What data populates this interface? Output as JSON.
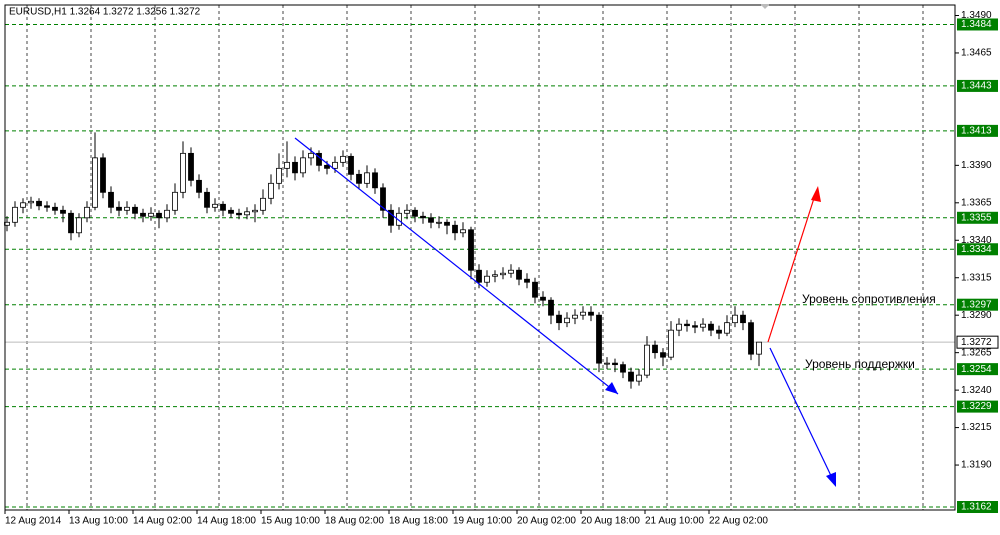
{
  "chart_data": {
    "type": "candlestick",
    "title": "EURUSD,H1  1.3264 1.3272 1.3256 1.3272",
    "categories": [
      "12 Aug 2014",
      null,
      null,
      null,
      null,
      null,
      null,
      null,
      "13 Aug 10:00",
      null,
      null,
      null,
      null,
      null,
      null,
      null,
      "14 Aug 02:00",
      null,
      null,
      null,
      null,
      null,
      null,
      null,
      "14 Aug 18:00",
      null,
      null,
      null,
      null,
      null,
      null,
      null,
      "15 Aug 10:00",
      null,
      null,
      null,
      null,
      null,
      null,
      null,
      "18 Aug 02:00",
      null,
      null,
      null,
      null,
      null,
      null,
      null,
      "18 Aug 18:00",
      null,
      null,
      null,
      null,
      null,
      null,
      null,
      "19 Aug 10:00",
      null,
      null,
      null,
      null,
      null,
      null,
      null,
      "20 Aug 02:00",
      null,
      null,
      null,
      null,
      null,
      null,
      null,
      "20 Aug 18:00",
      null,
      null,
      null,
      null,
      null,
      null,
      null,
      "21 Aug 10:00",
      null,
      null,
      null,
      null,
      null,
      null,
      null,
      "22 Aug 02:00",
      null,
      null,
      null,
      null,
      null,
      null
    ],
    "ohlc": [
      [
        1.335,
        1.3356,
        1.3346,
        1.3352
      ],
      [
        1.3352,
        1.3366,
        1.3349,
        1.3362
      ],
      [
        1.3362,
        1.3368,
        1.3358,
        1.3365
      ],
      [
        1.3365,
        1.3369,
        1.3361,
        1.3366
      ],
      [
        1.3366,
        1.3368,
        1.336,
        1.3363
      ],
      [
        1.3363,
        1.3366,
        1.3359,
        1.3362
      ],
      [
        1.3362,
        1.3365,
        1.3357,
        1.336
      ],
      [
        1.336,
        1.3363,
        1.3352,
        1.3358
      ],
      [
        1.3358,
        1.336,
        1.334,
        1.3345
      ],
      [
        1.3345,
        1.3358,
        1.3342,
        1.3355
      ],
      [
        1.3355,
        1.3366,
        1.3352,
        1.3362
      ],
      [
        1.3362,
        1.3412,
        1.336,
        1.3395
      ],
      [
        1.3395,
        1.3398,
        1.3368,
        1.3372
      ],
      [
        1.3372,
        1.3376,
        1.3358,
        1.3362
      ],
      [
        1.3362,
        1.3366,
        1.3356,
        1.336
      ],
      [
        1.336,
        1.3366,
        1.3357,
        1.3362
      ],
      [
        1.3362,
        1.3364,
        1.3354,
        1.3358
      ],
      [
        1.3358,
        1.3361,
        1.3352,
        1.3356
      ],
      [
        1.3356,
        1.3362,
        1.3353,
        1.3358
      ],
      [
        1.3358,
        1.336,
        1.3348,
        1.3355
      ],
      [
        1.3355,
        1.3364,
        1.3352,
        1.336
      ],
      [
        1.336,
        1.3378,
        1.3357,
        1.3372
      ],
      [
        1.3372,
        1.3406,
        1.3368,
        1.3398
      ],
      [
        1.3398,
        1.3402,
        1.3376,
        1.338
      ],
      [
        1.338,
        1.3384,
        1.3368,
        1.3372
      ],
      [
        1.3372,
        1.3375,
        1.3358,
        1.3362
      ],
      [
        1.3362,
        1.3368,
        1.3359,
        1.3364
      ],
      [
        1.3364,
        1.3366,
        1.3356,
        1.336
      ],
      [
        1.336,
        1.3362,
        1.3355,
        1.3358
      ],
      [
        1.3358,
        1.3361,
        1.3354,
        1.3357
      ],
      [
        1.3357,
        1.3362,
        1.3354,
        1.3359
      ],
      [
        1.3359,
        1.3364,
        1.3352,
        1.336
      ],
      [
        1.336,
        1.3374,
        1.3357,
        1.3368
      ],
      [
        1.3368,
        1.3384,
        1.3364,
        1.3378
      ],
      [
        1.3378,
        1.3398,
        1.3374,
        1.3388
      ],
      [
        1.3388,
        1.3406,
        1.3382,
        1.3392
      ],
      [
        1.3392,
        1.3396,
        1.338,
        1.3385
      ],
      [
        1.3385,
        1.34,
        1.3382,
        1.3395
      ],
      [
        1.3395,
        1.3402,
        1.339,
        1.3398
      ],
      [
        1.3398,
        1.34,
        1.3386,
        1.339
      ],
      [
        1.339,
        1.3393,
        1.3384,
        1.3388
      ],
      [
        1.3388,
        1.3396,
        1.3385,
        1.3392
      ],
      [
        1.3392,
        1.34,
        1.3389,
        1.3396
      ],
      [
        1.3396,
        1.3398,
        1.338,
        1.3384
      ],
      [
        1.3384,
        1.3387,
        1.3374,
        1.3378
      ],
      [
        1.3378,
        1.339,
        1.3375,
        1.3385
      ],
      [
        1.3385,
        1.3388,
        1.3371,
        1.3375
      ],
      [
        1.3375,
        1.3378,
        1.3355,
        1.336
      ],
      [
        1.336,
        1.3364,
        1.3345,
        1.335
      ],
      [
        1.335,
        1.3362,
        1.3347,
        1.3358
      ],
      [
        1.3358,
        1.3364,
        1.3354,
        1.336
      ],
      [
        1.336,
        1.3362,
        1.3352,
        1.3356
      ],
      [
        1.3356,
        1.3359,
        1.3351,
        1.3355
      ],
      [
        1.3355,
        1.3358,
        1.3348,
        1.3352
      ],
      [
        1.3352,
        1.3356,
        1.3348,
        1.3352
      ],
      [
        1.3352,
        1.3354,
        1.3344,
        1.335
      ],
      [
        1.335,
        1.3353,
        1.334,
        1.3345
      ],
      [
        1.3345,
        1.3352,
        1.3342,
        1.3347
      ],
      [
        1.3347,
        1.3349,
        1.3314,
        1.332
      ],
      [
        1.332,
        1.3324,
        1.3308,
        1.3312
      ],
      [
        1.3312,
        1.332,
        1.3309,
        1.3316
      ],
      [
        1.3316,
        1.332,
        1.3312,
        1.3317
      ],
      [
        1.3317,
        1.3322,
        1.3314,
        1.3318
      ],
      [
        1.3318,
        1.3324,
        1.3315,
        1.332
      ],
      [
        1.332,
        1.3322,
        1.331,
        1.3314
      ],
      [
        1.3314,
        1.3318,
        1.3308,
        1.3312
      ],
      [
        1.3312,
        1.3315,
        1.3298,
        1.3302
      ],
      [
        1.3302,
        1.3306,
        1.3296,
        1.33
      ],
      [
        1.33,
        1.3302,
        1.3284,
        1.329
      ],
      [
        1.329,
        1.3293,
        1.328,
        1.3285
      ],
      [
        1.3285,
        1.3292,
        1.3282,
        1.3288
      ],
      [
        1.3288,
        1.3294,
        1.3284,
        1.329
      ],
      [
        1.329,
        1.3296,
        1.3287,
        1.3292
      ],
      [
        1.3292,
        1.3296,
        1.3286,
        1.329
      ],
      [
        1.329,
        1.3292,
        1.3252,
        1.3258
      ],
      [
        1.3258,
        1.3262,
        1.3254,
        1.3258
      ],
      [
        1.3258,
        1.3261,
        1.3252,
        1.3257
      ],
      [
        1.3257,
        1.3259,
        1.3248,
        1.3252
      ],
      [
        1.3252,
        1.3255,
        1.3241,
        1.3246
      ],
      [
        1.3246,
        1.3254,
        1.3243,
        1.325
      ],
      [
        1.325,
        1.3276,
        1.3248,
        1.327
      ],
      [
        1.327,
        1.3273,
        1.3261,
        1.3265
      ],
      [
        1.3265,
        1.3268,
        1.3256,
        1.3262
      ],
      [
        1.3262,
        1.3286,
        1.326,
        1.328
      ],
      [
        1.328,
        1.3288,
        1.3276,
        1.3284
      ],
      [
        1.3284,
        1.3287,
        1.3279,
        1.3283
      ],
      [
        1.3283,
        1.3286,
        1.3278,
        1.3282
      ],
      [
        1.3282,
        1.3288,
        1.3279,
        1.3284
      ],
      [
        1.3284,
        1.3286,
        1.3276,
        1.328
      ],
      [
        1.328,
        1.3283,
        1.3274,
        1.3278
      ],
      [
        1.3278,
        1.329,
        1.3276,
        1.3285
      ],
      [
        1.3285,
        1.3296,
        1.3282,
        1.329
      ],
      [
        1.329,
        1.3293,
        1.328,
        1.3285
      ],
      [
        1.3285,
        1.3287,
        1.326,
        1.3264
      ],
      [
        1.3264,
        1.3272,
        1.3256,
        1.3272
      ]
    ],
    "up_color": "#ffffff",
    "down_color": "#000000",
    "ylim": [
      1.316,
      1.3497
    ],
    "yticks": [
      {
        "value": 1.349,
        "label": "1.3490"
      },
      1.3465,
      {
        "value": 1.339,
        "label": "1.3390"
      },
      1.3365,
      {
        "value": 1.334,
        "label": "1.3340"
      },
      1.3315,
      {
        "value": 1.329,
        "label": "1.3290"
      },
      1.3265,
      {
        "value": 1.324,
        "label": "1.3240"
      },
      1.3215,
      {
        "value": 1.319,
        "label": "1.3190"
      }
    ],
    "levels": [
      1.3484,
      1.3443,
      1.3413,
      1.3355,
      1.3334,
      1.3297,
      1.3254,
      1.3229,
      1.3162
    ],
    "level_color": "#008000",
    "current_price": 1.3272,
    "annotations": [
      "Уровень сопротивления",
      "Уровень поддержки"
    ]
  }
}
